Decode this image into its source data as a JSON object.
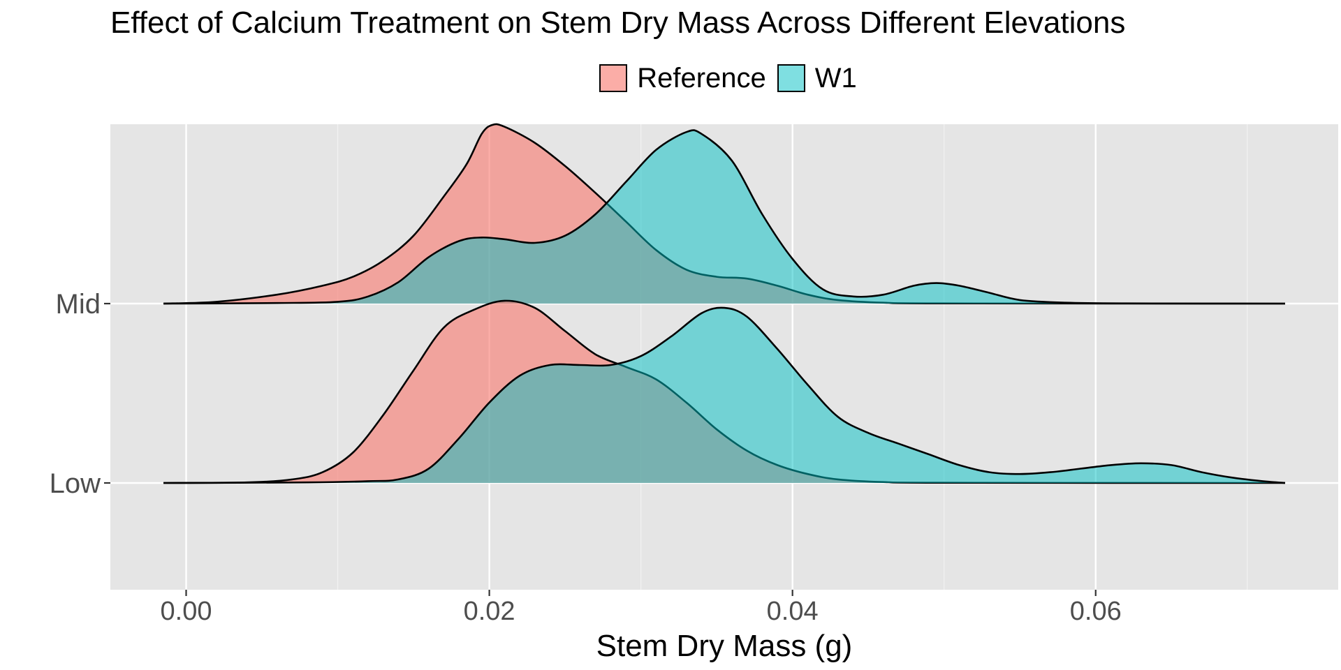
{
  "chart_data": {
    "type": "ridgeline-density",
    "title": "Effect of Calcium Treatment on Stem Dry Mass Across Different Elevations",
    "xlabel": "Stem Dry Mass (g)",
    "ylabel": "",
    "xlim": [
      -0.005,
      0.076
    ],
    "x_ticks": [
      0.0,
      0.02,
      0.04,
      0.06
    ],
    "x_tick_labels": [
      "0.00",
      "0.02",
      "0.04",
      "0.06"
    ],
    "categories": [
      "Low",
      "Mid"
    ],
    "legend": {
      "position": "top",
      "entries": [
        "Reference",
        "W1"
      ]
    },
    "grid": true,
    "series_colors": {
      "Reference": "#F8766D",
      "W1": "#00BFC4"
    },
    "series": [
      {
        "name": "Reference",
        "category": "Mid",
        "points": [
          [
            -0.0015,
            0.0
          ],
          [
            0.002,
            0.01
          ],
          [
            0.006,
            0.05
          ],
          [
            0.009,
            0.1
          ],
          [
            0.011,
            0.15
          ],
          [
            0.013,
            0.24
          ],
          [
            0.015,
            0.38
          ],
          [
            0.017,
            0.6
          ],
          [
            0.0185,
            0.78
          ],
          [
            0.0195,
            0.95
          ],
          [
            0.0202,
            1.0
          ],
          [
            0.021,
            0.99
          ],
          [
            0.023,
            0.9
          ],
          [
            0.025,
            0.77
          ],
          [
            0.027,
            0.62
          ],
          [
            0.029,
            0.46
          ],
          [
            0.031,
            0.3
          ],
          [
            0.033,
            0.19
          ],
          [
            0.035,
            0.15
          ],
          [
            0.037,
            0.14
          ],
          [
            0.039,
            0.1
          ],
          [
            0.041,
            0.05
          ],
          [
            0.043,
            0.02
          ],
          [
            0.046,
            0.005
          ],
          [
            0.05,
            0.001
          ],
          [
            0.0725,
            0.0
          ]
        ]
      },
      {
        "name": "W1",
        "category": "Mid",
        "points": [
          [
            -0.0015,
            0.0
          ],
          [
            0.006,
            0.003
          ],
          [
            0.01,
            0.01
          ],
          [
            0.012,
            0.04
          ],
          [
            0.014,
            0.12
          ],
          [
            0.016,
            0.26
          ],
          [
            0.018,
            0.35
          ],
          [
            0.0195,
            0.37
          ],
          [
            0.021,
            0.36
          ],
          [
            0.023,
            0.34
          ],
          [
            0.025,
            0.38
          ],
          [
            0.027,
            0.5
          ],
          [
            0.029,
            0.68
          ],
          [
            0.031,
            0.86
          ],
          [
            0.033,
            0.96
          ],
          [
            0.034,
            0.95
          ],
          [
            0.036,
            0.8
          ],
          [
            0.038,
            0.5
          ],
          [
            0.04,
            0.25
          ],
          [
            0.042,
            0.08
          ],
          [
            0.044,
            0.04
          ],
          [
            0.046,
            0.05
          ],
          [
            0.048,
            0.1
          ],
          [
            0.0495,
            0.115
          ],
          [
            0.051,
            0.1
          ],
          [
            0.053,
            0.06
          ],
          [
            0.055,
            0.02
          ],
          [
            0.058,
            0.005
          ],
          [
            0.062,
            0.001
          ],
          [
            0.0725,
            0.0
          ]
        ]
      },
      {
        "name": "Reference",
        "category": "Low",
        "points": [
          [
            -0.0015,
            0.0
          ],
          [
            0.004,
            0.003
          ],
          [
            0.007,
            0.02
          ],
          [
            0.009,
            0.06
          ],
          [
            0.011,
            0.17
          ],
          [
            0.013,
            0.38
          ],
          [
            0.015,
            0.63
          ],
          [
            0.017,
            0.87
          ],
          [
            0.019,
            0.97
          ],
          [
            0.021,
            1.02
          ],
          [
            0.023,
            0.98
          ],
          [
            0.025,
            0.85
          ],
          [
            0.027,
            0.72
          ],
          [
            0.029,
            0.65
          ],
          [
            0.031,
            0.58
          ],
          [
            0.033,
            0.45
          ],
          [
            0.035,
            0.3
          ],
          [
            0.037,
            0.18
          ],
          [
            0.039,
            0.1
          ],
          [
            0.041,
            0.05
          ],
          [
            0.043,
            0.02
          ],
          [
            0.046,
            0.005
          ],
          [
            0.05,
            0.001
          ],
          [
            0.0725,
            0.0
          ]
        ]
      },
      {
        "name": "W1",
        "category": "Low",
        "points": [
          [
            -0.0015,
            0.0
          ],
          [
            0.008,
            0.003
          ],
          [
            0.012,
            0.01
          ],
          [
            0.014,
            0.02
          ],
          [
            0.016,
            0.08
          ],
          [
            0.018,
            0.25
          ],
          [
            0.02,
            0.45
          ],
          [
            0.022,
            0.6
          ],
          [
            0.024,
            0.66
          ],
          [
            0.026,
            0.66
          ],
          [
            0.028,
            0.66
          ],
          [
            0.03,
            0.71
          ],
          [
            0.032,
            0.82
          ],
          [
            0.034,
            0.95
          ],
          [
            0.0355,
            0.98
          ],
          [
            0.037,
            0.93
          ],
          [
            0.039,
            0.75
          ],
          [
            0.041,
            0.55
          ],
          [
            0.043,
            0.37
          ],
          [
            0.045,
            0.28
          ],
          [
            0.047,
            0.22
          ],
          [
            0.049,
            0.16
          ],
          [
            0.051,
            0.1
          ],
          [
            0.053,
            0.06
          ],
          [
            0.055,
            0.05
          ],
          [
            0.057,
            0.06
          ],
          [
            0.059,
            0.08
          ],
          [
            0.061,
            0.1
          ],
          [
            0.063,
            0.11
          ],
          [
            0.065,
            0.1
          ],
          [
            0.067,
            0.06
          ],
          [
            0.069,
            0.03
          ],
          [
            0.071,
            0.01
          ],
          [
            0.0725,
            0.0
          ]
        ]
      }
    ]
  }
}
